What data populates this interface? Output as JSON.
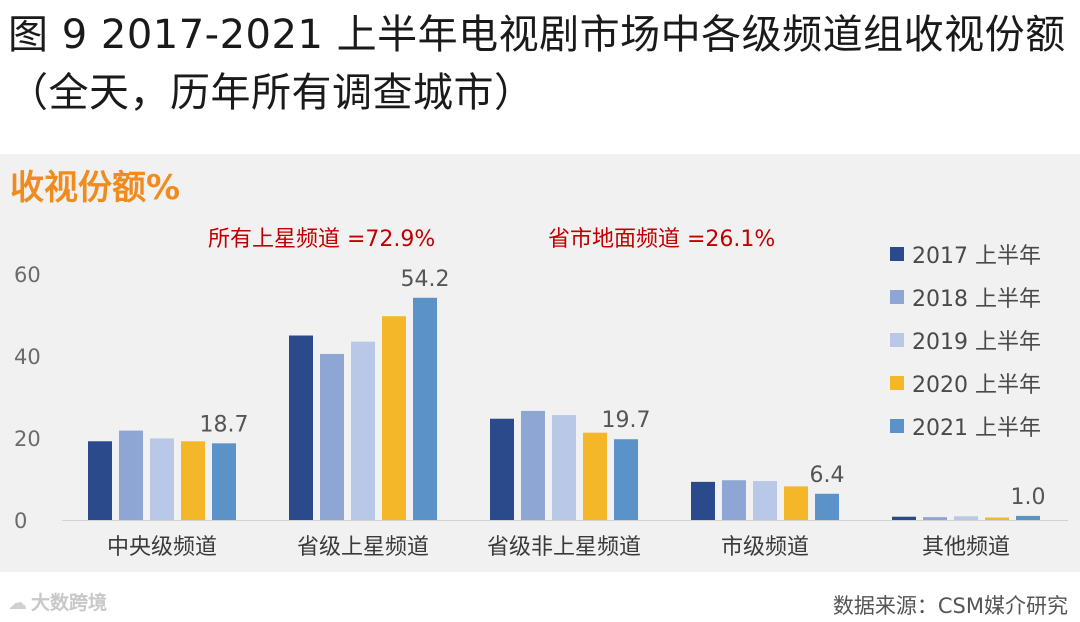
{
  "title": "图 9 2017-2021 上半年电视剧市场中各级频道组收视份额（全天，历年所有调查城市）",
  "chart_data": {
    "type": "bar",
    "ylabel": "收视份额%",
    "ylim": [
      0,
      60
    ],
    "yticks": [
      0,
      20,
      40,
      60
    ],
    "categories": [
      "中央级频道",
      "省级上星频道",
      "省级非上星频道",
      "市级频道",
      "其他频道"
    ],
    "series": [
      {
        "name": "2017 上半年",
        "color": "#2b4a8c",
        "values": [
          19.2,
          45.0,
          24.7,
          9.3,
          0.8
        ]
      },
      {
        "name": "2018 上半年",
        "color": "#8ea6d4",
        "values": [
          21.8,
          40.5,
          26.6,
          9.7,
          0.7
        ]
      },
      {
        "name": "2019 上半年",
        "color": "#b9c8e6",
        "values": [
          19.9,
          43.5,
          25.6,
          9.5,
          0.9
        ]
      },
      {
        "name": "2020 上半年",
        "color": "#f5b72a",
        "values": [
          19.2,
          49.7,
          21.3,
          8.2,
          0.6
        ]
      },
      {
        "name": "2021 上半年",
        "color": "#5b93c9",
        "values": [
          18.7,
          54.2,
          19.7,
          6.4,
          1.0
        ]
      }
    ],
    "data_labels": [
      "18.7",
      "54.2",
      "19.7",
      "6.4",
      "1.0"
    ],
    "annotations": [
      "所有上星频道 =72.9%",
      "省市地面频道 =26.1%"
    ],
    "grid": false,
    "legend": "right"
  },
  "watermark": "大数跨境",
  "source": "数据来源：CSM媒介研究"
}
